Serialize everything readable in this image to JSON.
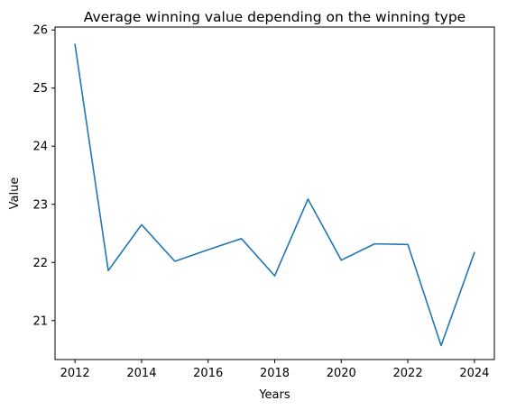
{
  "chart_data": {
    "type": "line",
    "title": "Average winning value depending on the winning type",
    "xlabel": "Years",
    "ylabel": "Value",
    "x": [
      2012,
      2013,
      2014,
      2015,
      2016,
      2017,
      2018,
      2019,
      2020,
      2021,
      2022,
      2023,
      2024
    ],
    "series": [
      {
        "values": [
          25.75,
          21.86,
          22.65,
          22.02,
          22.22,
          22.41,
          21.77,
          23.09,
          22.04,
          22.32,
          22.31,
          20.57,
          22.17
        ],
        "color": "#1f77b4"
      }
    ],
    "xlim": [
      2011.4,
      2024.6
    ],
    "ylim": [
      20.33,
      26.05
    ],
    "xticks": [
      2012,
      2014,
      2016,
      2018,
      2020,
      2022,
      2024
    ],
    "yticks": [
      21,
      22,
      23,
      24,
      25,
      26
    ],
    "grid": false,
    "legend": "none"
  }
}
